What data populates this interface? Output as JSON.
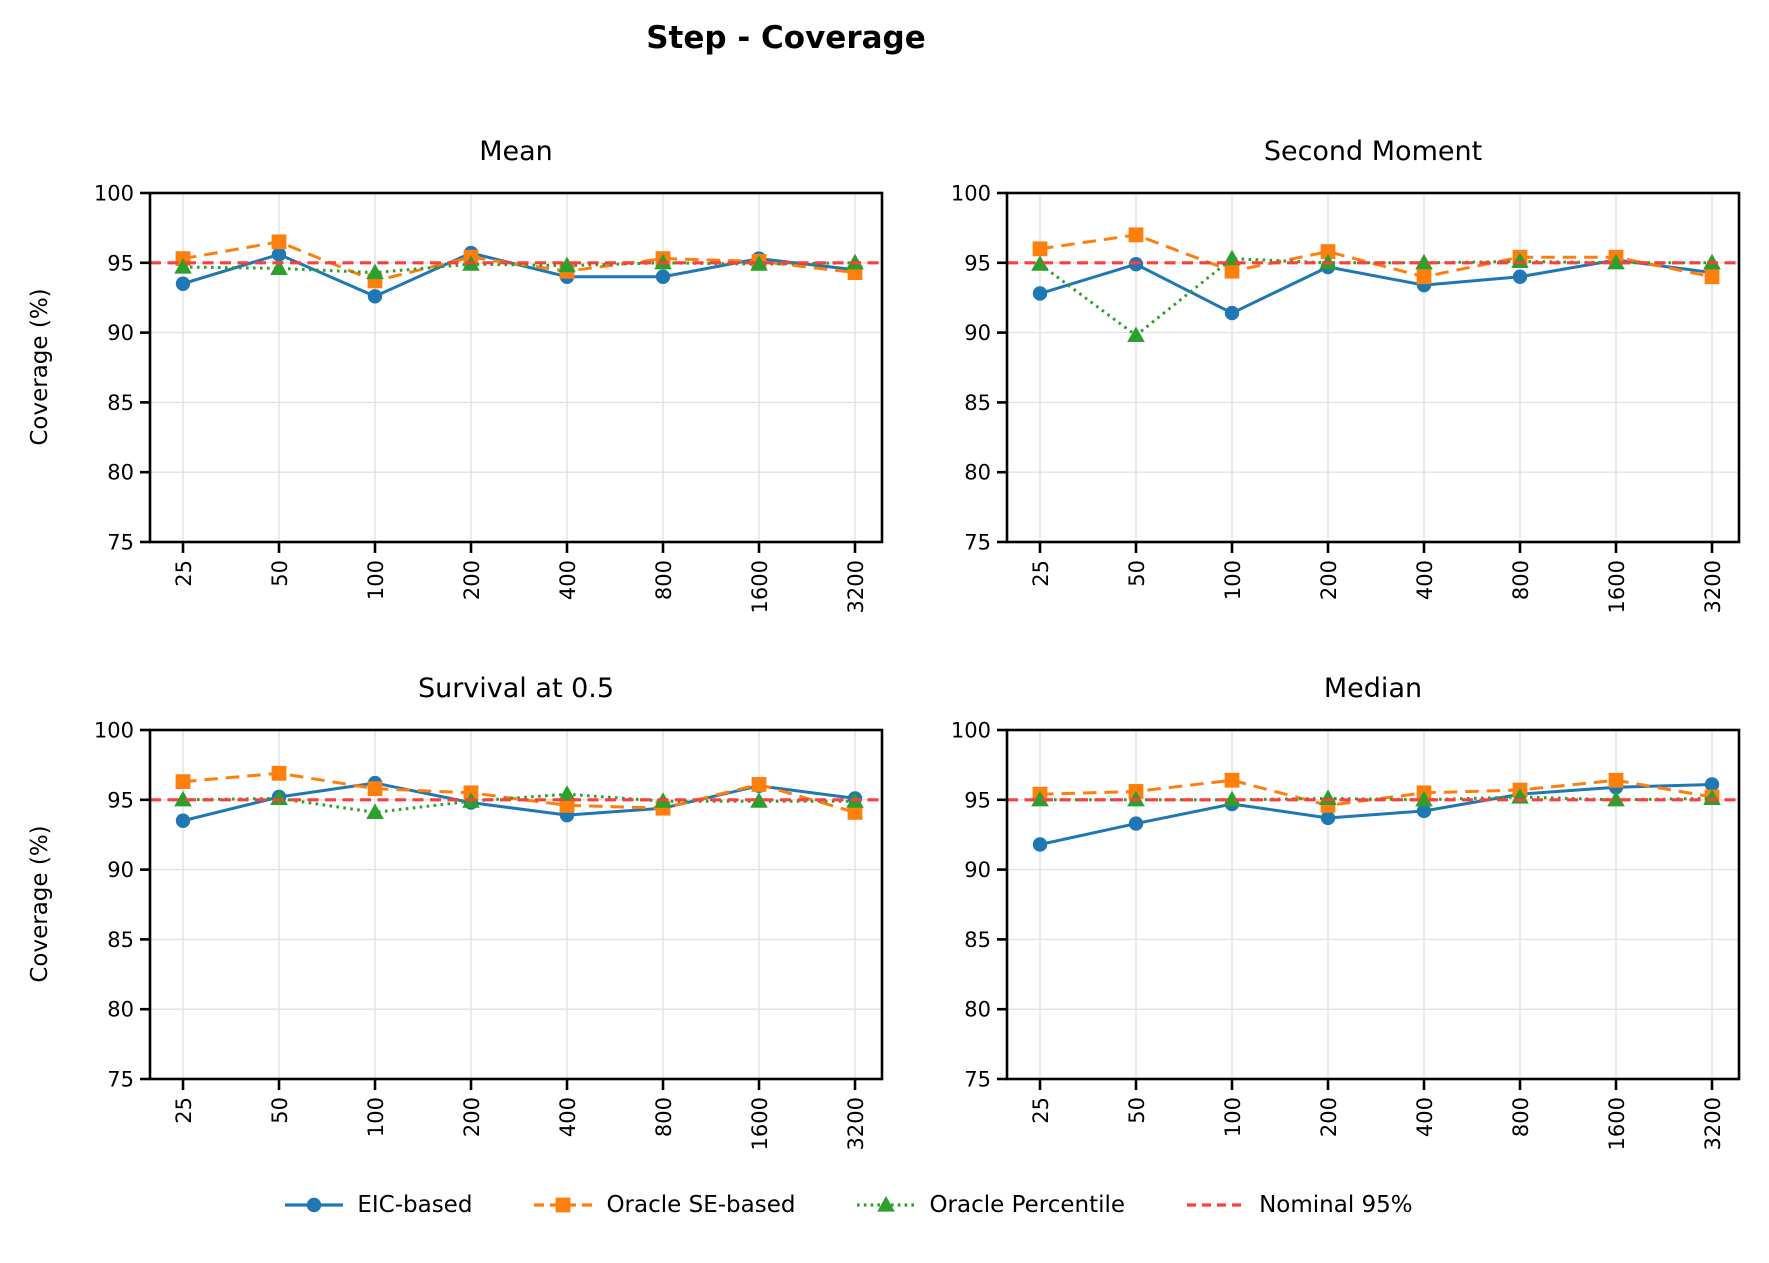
{
  "page_title": "Step - Coverage",
  "ylabel": "Coverage (%)",
  "colors": {
    "eic_blue": "#1f77b4",
    "oracle_orange": "#ff7f0e",
    "percentile_green": "#2ca02c",
    "nominal_red": "#f8403e",
    "grid": "#e2e2e2",
    "axis": "#000000"
  },
  "series_meta": [
    {
      "label": "EIC-based",
      "color": "#1f77b4",
      "marker": "circle",
      "dash": "solid"
    },
    {
      "label": "Oracle SE-based",
      "color": "#ff7f0e",
      "marker": "square",
      "dash": "dashed"
    },
    {
      "label": "Oracle Percentile",
      "color": "#2ca02c",
      "marker": "triangle",
      "dash": "dotted"
    },
    {
      "label": "Nominal 95%",
      "color": "#f8403e",
      "marker": "none",
      "dash": "nominal"
    }
  ],
  "chart_data": [
    {
      "type": "line",
      "title": "Mean",
      "categories": [
        "25",
        "50",
        "100",
        "200",
        "400",
        "800",
        "1600",
        "3200"
      ],
      "ylim": [
        75,
        100
      ],
      "yticks": [
        75,
        80,
        85,
        90,
        95,
        100
      ],
      "nominal": 95,
      "grid": true,
      "series": [
        {
          "name": "EIC-based",
          "values": [
            93.5,
            95.6,
            92.6,
            95.7,
            94.0,
            94.0,
            95.3,
            94.5
          ]
        },
        {
          "name": "Oracle SE-based",
          "values": [
            95.3,
            96.5,
            93.7,
            95.4,
            94.4,
            95.3,
            95.1,
            94.3
          ]
        },
        {
          "name": "Oracle Percentile",
          "values": [
            94.7,
            94.6,
            94.3,
            94.9,
            94.8,
            95.0,
            94.9,
            95.0
          ]
        }
      ]
    },
    {
      "type": "line",
      "title": "Second Moment",
      "categories": [
        "25",
        "50",
        "100",
        "200",
        "400",
        "800",
        "1600",
        "3200"
      ],
      "ylim": [
        75,
        100
      ],
      "yticks": [
        75,
        80,
        85,
        90,
        95,
        100
      ],
      "nominal": 95,
      "grid": true,
      "series": [
        {
          "name": "EIC-based",
          "values": [
            92.8,
            94.9,
            91.4,
            94.7,
            93.4,
            94.0,
            95.2,
            94.3
          ]
        },
        {
          "name": "Oracle SE-based",
          "values": [
            96.0,
            97.0,
            94.4,
            95.8,
            94.0,
            95.4,
            95.4,
            94.0
          ]
        },
        {
          "name": "Oracle Percentile",
          "values": [
            94.9,
            89.8,
            95.3,
            95.0,
            95.0,
            95.1,
            95.0,
            95.0
          ]
        }
      ]
    },
    {
      "type": "line",
      "title": "Survival at 0.5",
      "categories": [
        "25",
        "50",
        "100",
        "200",
        "400",
        "800",
        "1600",
        "3200"
      ],
      "ylim": [
        75,
        100
      ],
      "yticks": [
        75,
        80,
        85,
        90,
        95,
        100
      ],
      "nominal": 95,
      "grid": true,
      "series": [
        {
          "name": "EIC-based",
          "values": [
            93.5,
            95.2,
            96.2,
            94.8,
            93.9,
            94.4,
            96.0,
            95.1
          ]
        },
        {
          "name": "Oracle SE-based",
          "values": [
            96.3,
            96.9,
            95.8,
            95.5,
            94.6,
            94.4,
            96.1,
            94.1
          ]
        },
        {
          "name": "Oracle Percentile",
          "values": [
            95.0,
            95.1,
            94.1,
            94.9,
            95.4,
            94.9,
            94.9,
            94.9
          ]
        }
      ]
    },
    {
      "type": "line",
      "title": "Median",
      "categories": [
        "25",
        "50",
        "100",
        "200",
        "400",
        "800",
        "1600",
        "3200"
      ],
      "ylim": [
        75,
        100
      ],
      "yticks": [
        75,
        80,
        85,
        90,
        95,
        100
      ],
      "nominal": 95,
      "grid": true,
      "series": [
        {
          "name": "EIC-based",
          "values": [
            91.8,
            93.3,
            94.7,
            93.7,
            94.2,
            95.4,
            95.9,
            96.1
          ]
        },
        {
          "name": "Oracle SE-based",
          "values": [
            95.4,
            95.6,
            96.4,
            94.6,
            95.5,
            95.7,
            96.4,
            95.2
          ]
        },
        {
          "name": "Oracle Percentile",
          "values": [
            95.0,
            95.0,
            95.0,
            95.1,
            95.0,
            95.2,
            95.0,
            95.1
          ]
        }
      ]
    }
  ],
  "legend": {
    "items": [
      {
        "label": "EIC-based"
      },
      {
        "label": "Oracle SE-based"
      },
      {
        "label": "Oracle Percentile"
      },
      {
        "label": "Nominal 95%"
      }
    ]
  }
}
